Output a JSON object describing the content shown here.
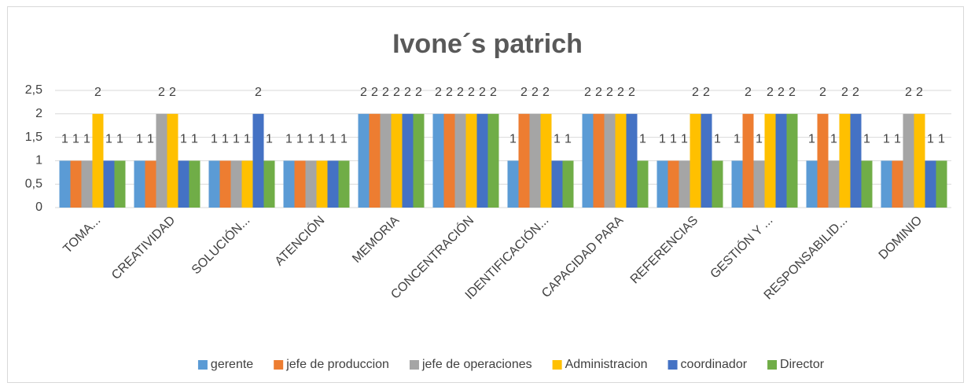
{
  "chart_data": {
    "type": "bar",
    "title": "Ivone´s patrich",
    "categories": [
      "TOMA...",
      "CREATIVIDAD",
      "SOLUCIÓN...",
      "ATENCIÓN",
      "MEMORIA",
      "CONCENTRACIÓN",
      "IDENTIFICACIÓN...",
      "CAPACIDAD PARA",
      "REFERENCIAS",
      "GESTIÓN Y ...",
      "RESPONSABILID...",
      "DOMINIO"
    ],
    "series": [
      {
        "name": "gerente",
        "color": "#5b9bd5",
        "values": [
          1,
          1,
          1,
          1,
          2,
          2,
          1,
          2,
          1,
          1,
          1,
          1
        ]
      },
      {
        "name": "jefe de produccion",
        "color": "#ed7d31",
        "values": [
          1,
          1,
          1,
          1,
          2,
          2,
          2,
          2,
          1,
          2,
          2,
          1
        ]
      },
      {
        "name": "jefe  de operaciones",
        "color": "#a5a5a5",
        "values": [
          1,
          2,
          1,
          1,
          2,
          2,
          2,
          2,
          1,
          1,
          1,
          2
        ]
      },
      {
        "name": "Administracion",
        "color": "#ffc000",
        "values": [
          2,
          2,
          1,
          1,
          2,
          2,
          2,
          2,
          2,
          2,
          2,
          2
        ]
      },
      {
        "name": "coordinador",
        "color": "#4472c4",
        "values": [
          1,
          1,
          2,
          1,
          2,
          2,
          1,
          2,
          2,
          2,
          2,
          1
        ]
      },
      {
        "name": "Director",
        "color": "#70ad47",
        "values": [
          1,
          1,
          1,
          1,
          2,
          2,
          1,
          1,
          1,
          2,
          1,
          1
        ]
      }
    ],
    "ylim": [
      0,
      2.5
    ],
    "yticks": [
      0,
      {
        "value": 0.5,
        "label": "0,5"
      },
      1,
      {
        "value": 1.5,
        "label": "1,5"
      },
      2,
      {
        "value": 2.5,
        "label": "2,5"
      }
    ],
    "grid": true,
    "legend": "bottom"
  }
}
